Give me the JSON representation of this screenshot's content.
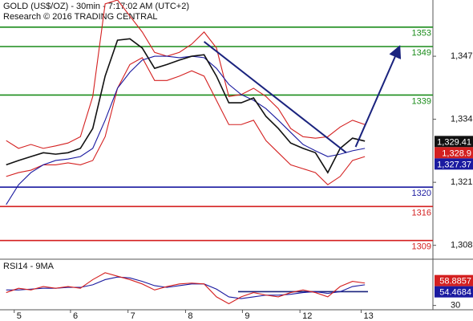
{
  "chart_data": [
    {
      "type": "line",
      "title": "GOLD (US$/OZ) - 30min - 7:17:02 AM (UTC+2)",
      "subtitle": "Research © 2016 TRADING CENTRAL",
      "x": [
        1,
        3,
        5,
        7,
        9,
        11,
        13,
        15,
        17,
        19,
        21,
        23,
        25,
        27,
        29,
        31,
        33,
        35,
        37,
        39,
        41,
        43,
        45,
        47,
        49,
        51,
        53,
        55,
        57,
        59
      ],
      "xlim": [
        0,
        70
      ],
      "xticks": [
        {
          "value": 2.3,
          "label": "5"
        },
        {
          "value": 11.4,
          "label": "6"
        },
        {
          "value": 20.7,
          "label": "7"
        },
        {
          "value": 30,
          "label": "8"
        },
        {
          "value": 39.2,
          "label": "9"
        },
        {
          "value": 48.5,
          "label": "12"
        },
        {
          "value": 58.4,
          "label": "13"
        }
      ],
      "ylim": [
        1305.3,
        1358.6
      ],
      "yticks": [
        {
          "value": 1308,
          "label": "1,308"
        },
        {
          "value": 1321,
          "label": "1,321"
        },
        {
          "value": 1334,
          "label": "1,334"
        },
        {
          "value": 1347,
          "label": "1,347"
        }
      ],
      "series": [
        {
          "color": "#d42020",
          "values": [
            1329.6,
            1328.0,
            1328.8,
            1328.0,
            1328.5,
            1329.1,
            1330.4,
            1338.7,
            1357.8,
            1358.6,
            1355.3,
            1352.0,
            1347.8,
            1347.0,
            1347.8,
            1349.5,
            1352.0,
            1348.7,
            1338.7,
            1339.1,
            1340.4,
            1338.7,
            1336.2,
            1332.1,
            1330.4,
            1330.1,
            1330.4,
            1332.4,
            1333.8,
            1332.9
          ]
        },
        {
          "color": "#d42020",
          "values": [
            1322.2,
            1323.0,
            1323.5,
            1324.6,
            1324.6,
            1325.0,
            1324.6,
            1325.5,
            1330.4,
            1340.4,
            1345.3,
            1346.7,
            1342.0,
            1342.0,
            1342.9,
            1344.0,
            1342.9,
            1337.9,
            1332.9,
            1332.9,
            1333.8,
            1329.6,
            1327.1,
            1324.6,
            1323.8,
            1323.0,
            1320.5,
            1322.2,
            1325.5,
            1326.3
          ]
        },
        {
          "color": "#1a1aa0",
          "values": [
            1316.4,
            1320.5,
            1323.0,
            1324.6,
            1325.5,
            1325.8,
            1326.3,
            1328.0,
            1333.8,
            1340.4,
            1343.7,
            1346.2,
            1347.0,
            1347.0,
            1346.7,
            1347.0,
            1346.7,
            1344.5,
            1341.2,
            1339.1,
            1337.9,
            1336.2,
            1333.8,
            1331.3,
            1328.8,
            1327.5,
            1326.3,
            1326.8,
            1327.5,
            1328.0
          ]
        },
        {
          "color": "#111111",
          "values": [
            1324.6,
            1325.5,
            1326.3,
            1327.1,
            1326.8,
            1327.1,
            1328.0,
            1332.1,
            1342.9,
            1350.3,
            1350.6,
            1348.7,
            1344.5,
            1345.3,
            1346.2,
            1347.0,
            1347.3,
            1342.9,
            1337.4,
            1337.4,
            1338.4,
            1334.6,
            1332.1,
            1329.1,
            1328.0,
            1327.1,
            1323.0,
            1328.0,
            1330.1,
            1329.5
          ]
        }
      ],
      "levels": [
        {
          "value": 1353,
          "color": "#1a8c1a"
        },
        {
          "value": 1349,
          "color": "#1a8c1a"
        },
        {
          "value": 1339,
          "color": "#1a8c1a"
        },
        {
          "value": 1320,
          "color": "#1a1aa0"
        },
        {
          "value": 1316,
          "color": "#d42020"
        },
        {
          "value": 1309,
          "color": "#d42020"
        }
      ],
      "trendlines": [
        {
          "x": [
            33,
            56
          ],
          "y": [
            1350,
            1327.1
          ],
          "color": "#1a237e",
          "arrow": false
        },
        {
          "x": [
            57.5,
            64.5
          ],
          "y": [
            1328.3,
            1348.7
          ],
          "color": "#1a237e",
          "arrow": true
        }
      ],
      "markers": [
        {
          "value": 1329.41,
          "label": "1,329.41",
          "color": "#111111"
        },
        {
          "value": 1328.9,
          "label": "1,328.9",
          "color": "#d42020"
        },
        {
          "value": 1327.37,
          "label": "1,327.37",
          "color": "#1a1aa0"
        }
      ]
    },
    {
      "type": "line",
      "title": "RSI14 - 9MA",
      "x": [
        1,
        3,
        5,
        7,
        9,
        11,
        13,
        15,
        17,
        19,
        21,
        23,
        25,
        27,
        29,
        31,
        33,
        35,
        37,
        39,
        41,
        43,
        45,
        47,
        49,
        51,
        53,
        55,
        57,
        59
      ],
      "xlim": [
        0,
        70
      ],
      "ylim": [
        25,
        80
      ],
      "yticks": [
        30
      ],
      "series": [
        {
          "color": "#1a1aa0",
          "values": [
            48,
            48,
            49,
            50,
            50,
            51,
            51,
            54,
            60,
            63,
            62,
            58,
            53,
            51,
            53,
            55,
            55,
            49,
            40,
            38,
            40,
            42,
            42,
            43,
            45,
            46,
            44,
            46,
            52,
            54
          ]
        },
        {
          "color": "#d42020",
          "values": [
            45,
            50,
            48,
            52,
            50,
            52,
            50,
            60,
            68,
            64,
            60,
            55,
            48,
            52,
            55,
            56,
            55,
            40,
            32,
            40,
            45,
            42,
            40,
            45,
            48,
            45,
            40,
            52,
            58,
            56
          ]
        }
      ],
      "hlines": [
        {
          "value": 46,
          "x": [
            38.5,
            59.5
          ],
          "color": "#1a237e"
        }
      ],
      "markers": [
        {
          "value": 58.8857,
          "color": "#d42020"
        },
        {
          "value": 54.4684,
          "color": "#1a1aa0"
        }
      ]
    }
  ]
}
